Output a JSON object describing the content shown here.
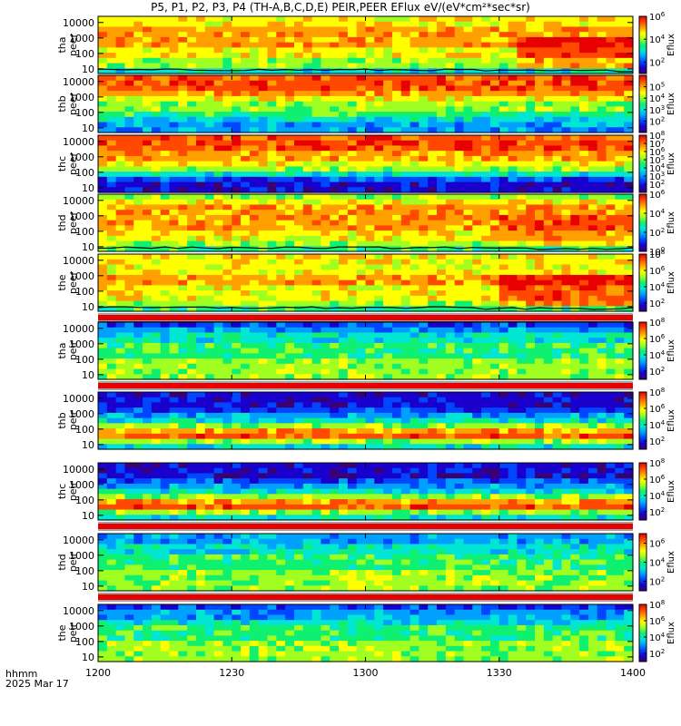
{
  "title": "P5, P1, P2, P3, P4 (TH-A,B,C,D,E) PEIR,PEER EFlux eV/(eV*cm²*sec*sr)",
  "xaxis": {
    "unit_line1": "hhmm",
    "unit_line2": "2025 Mar 17"
  },
  "colorbar_label": "Eflux",
  "colors": {
    "gap_red": "#e60000",
    "frame": "#000000"
  },
  "chart_data": [
    {
      "type": "heatmap",
      "probe": "tha",
      "instrument": "peer",
      "ylabel": [
        "tha",
        "peer"
      ],
      "x_ticks": [
        "1200",
        "1230",
        "1300",
        "1330",
        "1400"
      ],
      "y_ticks": [
        "10",
        "100",
        "1000",
        "10000"
      ],
      "ylim": [
        5,
        25000
      ],
      "yscale": "log",
      "colorbar_ticks": [
        "10^2",
        "10^4",
        "10^6"
      ],
      "colorbar_range": [
        10,
        1000000.0
      ],
      "overlay_line": true,
      "gap_below": false,
      "band_profile": [
        7,
        7,
        8,
        8,
        8,
        8,
        7,
        7,
        6,
        6,
        4
      ],
      "change_time_fraction": 0.77,
      "post_change_boost": 2
    },
    {
      "type": "heatmap",
      "probe": "thb",
      "instrument": "peer",
      "ylabel": [
        "thb",
        "peer"
      ],
      "x_ticks": [
        "1200",
        "1230",
        "1300",
        "1330",
        "1400"
      ],
      "y_ticks": [
        "10",
        "100",
        "1000",
        "10000"
      ],
      "ylim": [
        5,
        25000
      ],
      "yscale": "log",
      "colorbar_ticks": [
        "10^2",
        "10^3",
        "10^4",
        "10^5"
      ],
      "colorbar_range": [
        10,
        1000000.0
      ],
      "overlay_line": false,
      "gap_below": false,
      "band_profile": [
        9,
        9,
        9,
        8,
        7,
        6,
        6,
        5,
        4,
        3,
        3
      ],
      "change_time_fraction": 1.0,
      "post_change_boost": 0
    },
    {
      "type": "heatmap",
      "probe": "thc",
      "instrument": "peer",
      "ylabel": [
        "thc",
        "peer"
      ],
      "x_ticks": [
        "1200",
        "1230",
        "1300",
        "1330",
        "1400"
      ],
      "y_ticks": [
        "10",
        "100",
        "1000",
        "10000"
      ],
      "ylim": [
        5,
        25000
      ],
      "yscale": "log",
      "colorbar_ticks": [
        "10^2",
        "10^3",
        "10^4",
        "10^5",
        "10^6",
        "10^7",
        "10^8"
      ],
      "colorbar_range": [
        10,
        100000000.0
      ],
      "overlay_line": false,
      "gap_below": false,
      "band_profile": [
        9,
        9,
        9,
        8,
        8,
        7,
        6,
        4,
        2,
        1,
        1
      ],
      "change_time_fraction": 1.0,
      "post_change_boost": 0
    },
    {
      "type": "heatmap",
      "probe": "thd",
      "instrument": "peer",
      "ylabel": [
        "thd",
        "peer"
      ],
      "x_ticks": [
        "1200",
        "1230",
        "1300",
        "1330",
        "1400"
      ],
      "y_ticks": [
        "10",
        "100",
        "1000",
        "10000"
      ],
      "ylim": [
        5,
        25000
      ],
      "yscale": "log",
      "colorbar_ticks": [
        "10^0",
        "10^2",
        "10^4",
        "10^6"
      ],
      "colorbar_range": [
        1,
        1000000.0
      ],
      "overlay_line": true,
      "gap_below": false,
      "band_profile": [
        6,
        7,
        8,
        8,
        8,
        8,
        8,
        7,
        7,
        6,
        5
      ],
      "change_time_fraction": 0.75,
      "post_change_boost": 1
    },
    {
      "type": "heatmap",
      "probe": "the",
      "instrument": "peer",
      "ylabel": [
        "the",
        "peer"
      ],
      "x_ticks": [
        "1200",
        "1230",
        "1300",
        "1330",
        "1400"
      ],
      "y_ticks": [
        "10",
        "100",
        "1000",
        "10000"
      ],
      "ylim": [
        5,
        25000
      ],
      "yscale": "log",
      "colorbar_ticks": [
        "10^2",
        "10^4",
        "10^6",
        "10^8"
      ],
      "colorbar_range": [
        10,
        100000000.0
      ],
      "overlay_line": true,
      "gap_below": true,
      "band_profile": [
        7,
        7,
        7,
        7,
        8,
        8,
        7,
        7,
        7,
        6,
        5
      ],
      "change_time_fraction": 0.74,
      "post_change_boost": 2
    },
    {
      "type": "heatmap",
      "probe": "tha",
      "instrument": "peir",
      "ylabel": [
        "tha",
        "peir"
      ],
      "x_ticks": [
        "1200",
        "1230",
        "1300",
        "1330",
        "1400"
      ],
      "y_ticks": [
        "10",
        "100",
        "1000",
        "10000"
      ],
      "ylim": [
        5,
        25000
      ],
      "yscale": "log",
      "colorbar_ticks": [
        "10^2",
        "10^4",
        "10^6",
        "10^8"
      ],
      "colorbar_range": [
        10,
        100000000.0
      ],
      "overlay_line": false,
      "gap_below": true,
      "band_profile": [
        2,
        3,
        4,
        4,
        5,
        5,
        5,
        6,
        6,
        6,
        6
      ],
      "change_time_fraction": 1.0,
      "post_change_boost": 0
    },
    {
      "type": "heatmap",
      "probe": "thb",
      "instrument": "peir",
      "ylabel": [
        "thb",
        "peir"
      ],
      "x_ticks": [
        "1200",
        "1230",
        "1300",
        "1330",
        "1400"
      ],
      "y_ticks": [
        "10",
        "100",
        "1000",
        "10000"
      ],
      "ylim": [
        5,
        25000
      ],
      "yscale": "log",
      "colorbar_ticks": [
        "10^2",
        "10^4",
        "10^6",
        "10^8"
      ],
      "colorbar_range": [
        10,
        100000000.0
      ],
      "overlay_line": false,
      "gap_below": false,
      "band_profile": [
        1,
        1,
        1,
        2,
        3,
        4,
        6,
        8,
        9,
        6,
        4
      ],
      "change_time_fraction": 1.0,
      "post_change_boost": 0
    },
    {
      "type": "heatmap",
      "probe": "thc",
      "instrument": "peir",
      "ylabel": [
        "thc",
        "peir"
      ],
      "x_ticks": [
        "1200",
        "1230",
        "1300",
        "1330",
        "1400"
      ],
      "y_ticks": [
        "10",
        "100",
        "1000",
        "10000"
      ],
      "ylim": [
        5,
        25000
      ],
      "yscale": "log",
      "colorbar_ticks": [
        "10^2",
        "10^4",
        "10^6",
        "10^8"
      ],
      "colorbar_range": [
        10,
        100000000.0
      ],
      "overlay_line": false,
      "gap_below": true,
      "band_profile": [
        1,
        1,
        1,
        2,
        3,
        4,
        6,
        8,
        9,
        6,
        4
      ],
      "change_time_fraction": 1.0,
      "post_change_boost": 0
    },
    {
      "type": "heatmap",
      "probe": "thd",
      "instrument": "peir",
      "ylabel": [
        "thd",
        "peir"
      ],
      "x_ticks": [
        "1200",
        "1230",
        "1300",
        "1330",
        "1400"
      ],
      "y_ticks": [
        "10",
        "100",
        "1000",
        "10000"
      ],
      "ylim": [
        5,
        25000
      ],
      "yscale": "log",
      "colorbar_ticks": [
        "10^2",
        "10^4",
        "10^6"
      ],
      "colorbar_range": [
        10,
        10000000.0
      ],
      "overlay_line": false,
      "gap_below": true,
      "band_profile": [
        3,
        3,
        4,
        4,
        5,
        5,
        5,
        6,
        6,
        6,
        6
      ],
      "change_time_fraction": 1.0,
      "post_change_boost": 0
    },
    {
      "type": "heatmap",
      "probe": "the",
      "instrument": "peir",
      "ylabel": [
        "the",
        "peir"
      ],
      "x_ticks": [
        "1200",
        "1230",
        "1300",
        "1330",
        "1400"
      ],
      "y_ticks": [
        "10",
        "100",
        "1000",
        "10000"
      ],
      "ylim": [
        5,
        25000
      ],
      "yscale": "log",
      "colorbar_ticks": [
        "10^2",
        "10^4",
        "10^6",
        "10^8"
      ],
      "colorbar_range": [
        10,
        100000000.0
      ],
      "overlay_line": false,
      "gap_below": false,
      "band_profile": [
        2,
        3,
        3,
        4,
        5,
        5,
        5,
        6,
        6,
        6,
        6
      ],
      "change_time_fraction": 1.0,
      "post_change_boost": 0
    }
  ]
}
